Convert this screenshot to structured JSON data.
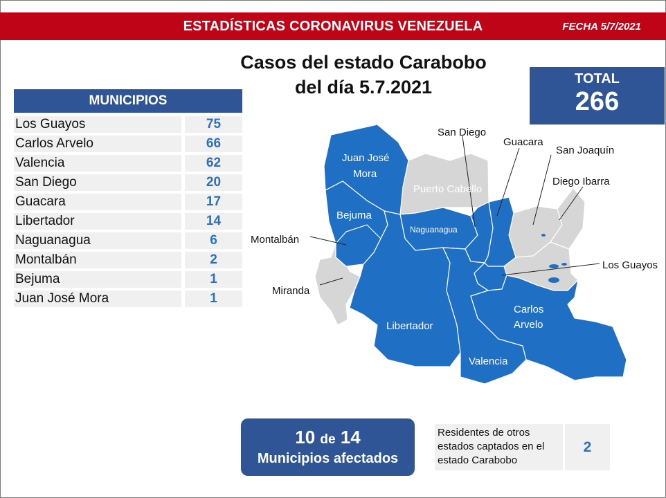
{
  "banner": {
    "title": "ESTADÍSTICAS CORONAVIRUS VENEZUELA",
    "date": "FECHA 5/7/2021",
    "color": "#c00418"
  },
  "subtitle": {
    "line1": "Casos del estado Carabobo",
    "line2": "del día 5.7.2021"
  },
  "total": {
    "label": "TOTAL",
    "value": "266"
  },
  "table": {
    "header": "MUNICIPIOS",
    "rows": [
      {
        "name": "Los Guayos",
        "value": "75"
      },
      {
        "name": "Carlos Arvelo",
        "value": "66"
      },
      {
        "name": "Valencia",
        "value": "62"
      },
      {
        "name": "San Diego",
        "value": "20"
      },
      {
        "name": "Guacara",
        "value": "17"
      },
      {
        "name": "Libertador",
        "value": "14"
      },
      {
        "name": "Naguanagua",
        "value": "6"
      },
      {
        "name": "Montalbán",
        "value": "2"
      },
      {
        "name": "Bejuma",
        "value": "1"
      },
      {
        "name": "Juan José Mora",
        "value": "1"
      }
    ]
  },
  "map": {
    "colors": {
      "affected": "#1f6fc5",
      "unaffected": "#d6d6d6"
    },
    "inside_labels": {
      "juan_jose_mora_1": "Juan José",
      "juan_jose_mora_2": "Mora",
      "puerto_cabello": "Puerto Cabello",
      "bejuma": "Bejuma",
      "naguanagua": "Naguanagua",
      "libertador": "Libertador",
      "carlos_arvelo_1": "Carlos",
      "carlos_arvelo_2": "Arvelo",
      "valencia": "Valencia"
    },
    "callout_labels": {
      "san_diego": "San Diego",
      "guacara": "Guacara",
      "san_joaquin": "San Joaquín",
      "diego_ibarra": "Diego Ibarra",
      "montalban": "Montalbán",
      "miranda": "Miranda",
      "los_guayos": "Los Guayos"
    }
  },
  "affected": {
    "count": "10",
    "of": "de",
    "total": "14",
    "label": "Municipios afectados"
  },
  "residents": {
    "text_1": "Residentes de otros",
    "text_2": "estados captados en el",
    "text_3": "estado Carabobo",
    "value": "2"
  }
}
